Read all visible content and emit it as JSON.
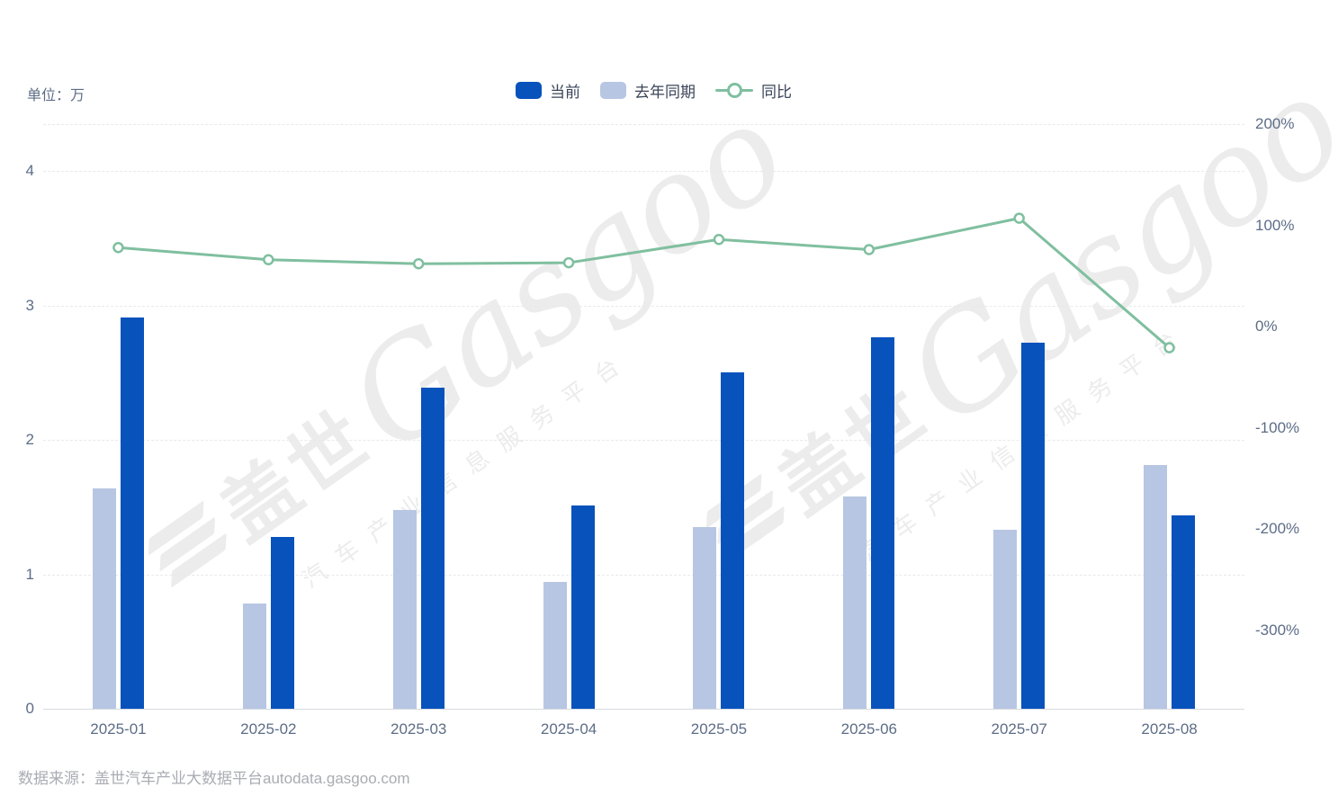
{
  "unit_label": "单位：万",
  "legend": {
    "current_label": "当前",
    "last_year_label": "去年同期",
    "yoy_label": "同比"
  },
  "colors": {
    "current_bar": "#0852bc",
    "last_year_bar": "#b7c6e2",
    "yoy_line": "#7fbf9f",
    "axis_text": "#5d6d86",
    "legend_text": "#3b4559",
    "source_text": "#a9acb3"
  },
  "watermark": {
    "brand_cn": "盖世",
    "brand_en": "Gasgoo",
    "tagline": "汽车产业信息服务平台"
  },
  "source_text": "数据来源：盖世汽车产业大数据平台autodata.gasgoo.com",
  "chart_data": {
    "type": "bar+line",
    "categories": [
      "2025-01",
      "2025-02",
      "2025-03",
      "2025-04",
      "2025-05",
      "2025-06",
      "2025-07",
      "2025-08"
    ],
    "series": [
      {
        "name": "当前",
        "type": "bar",
        "axis": "left",
        "values": [
          2.91,
          1.28,
          2.39,
          1.51,
          2.5,
          2.76,
          2.72,
          1.44
        ]
      },
      {
        "name": "去年同期",
        "type": "bar",
        "axis": "left",
        "values": [
          1.64,
          0.78,
          1.48,
          0.94,
          1.35,
          1.58,
          1.33,
          1.81
        ]
      },
      {
        "name": "同比",
        "type": "line",
        "axis": "right",
        "values_pct": [
          78,
          66,
          62,
          63,
          86,
          76,
          107,
          -21
        ]
      }
    ],
    "left_axis": {
      "unit": "万",
      "ticks": [
        "4",
        "3",
        "2",
        "1",
        "0"
      ],
      "tick_values": [
        4,
        3,
        2,
        1,
        0
      ],
      "ylim": [
        0,
        4
      ]
    },
    "right_axis": {
      "ticks": [
        "200%",
        "100%",
        "0%",
        "-100%",
        "-200%",
        "-300%"
      ],
      "tick_values": [
        200,
        100,
        0,
        -100,
        -200,
        -300
      ],
      "ylim_pct": [
        -300,
        200
      ]
    },
    "grid": "horizontal-dashed",
    "legend_position": "top-center"
  }
}
